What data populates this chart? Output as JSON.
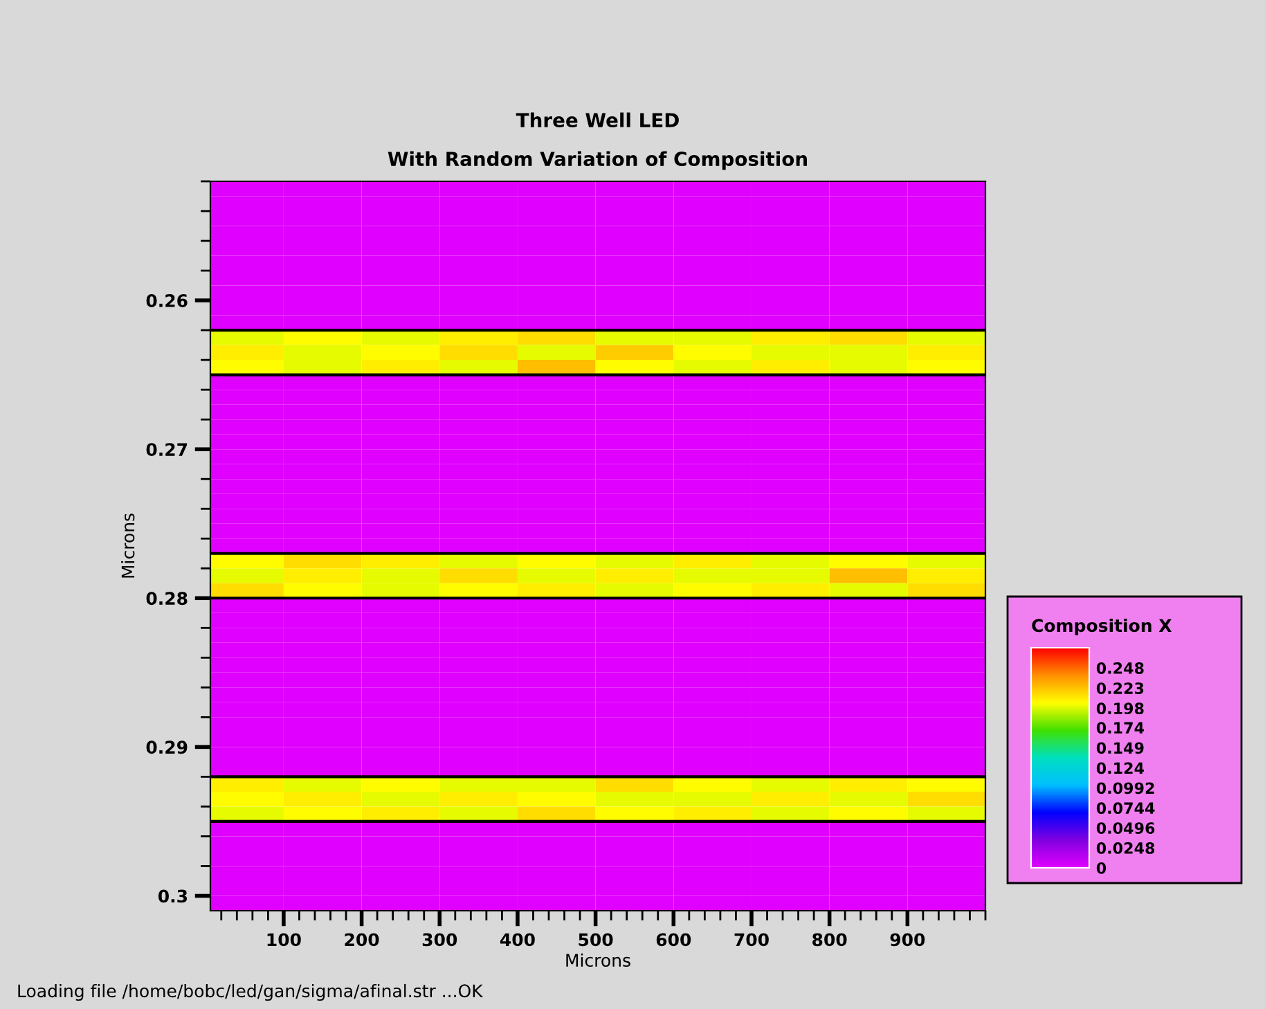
{
  "chart_data": {
    "type": "heatmap",
    "title": "Three Well LED",
    "subtitle": "With Random Variation of Composition",
    "xlabel": "Microns",
    "ylabel": "Microns",
    "clabel": "Composition X",
    "annotations": [
      "Loading file /home/bobc/led/gan/sigma/afinal.str ...OK"
    ],
    "x": [
      50,
      150,
      250,
      350,
      450,
      550,
      650,
      750,
      850,
      950
    ],
    "y": [
      0.2525,
      0.2535,
      0.2545,
      0.2555,
      0.2565,
      0.2575,
      0.2585,
      0.2595,
      0.2605,
      0.2615,
      0.2625,
      0.2635,
      0.2645,
      0.2655,
      0.2665,
      0.2675,
      0.2685,
      0.2695,
      0.2705,
      0.2715,
      0.2725,
      0.2735,
      0.2745,
      0.2755,
      0.2765,
      0.2775,
      0.2785,
      0.2795,
      0.2805,
      0.2815,
      0.2825,
      0.2835,
      0.2845,
      0.2855,
      0.2865,
      0.2875,
      0.2885,
      0.2895,
      0.2905,
      0.2915,
      0.2925,
      0.2935,
      0.2945,
      0.2955,
      0.2965,
      0.2975,
      0.2985,
      0.2995,
      0.3005
    ],
    "cells": [
      [
        0,
        0,
        0,
        0,
        0,
        0,
        0,
        0,
        0,
        0
      ],
      [
        0,
        0,
        0,
        0,
        0,
        0,
        0,
        0,
        0,
        0
      ],
      [
        0,
        0,
        0,
        0,
        0,
        0,
        0,
        0,
        0,
        0
      ],
      [
        0,
        0,
        0,
        0,
        0,
        0,
        0,
        0,
        0,
        0
      ],
      [
        0,
        0,
        0,
        0,
        0,
        0,
        0,
        0,
        0,
        0
      ],
      [
        0,
        0,
        0,
        0,
        0,
        0,
        0,
        0,
        0,
        0
      ],
      [
        0,
        0,
        0,
        0,
        0,
        0,
        0,
        0,
        0,
        0
      ],
      [
        0,
        0,
        0,
        0,
        0,
        0,
        0,
        0,
        0,
        0
      ],
      [
        0,
        0,
        0,
        0,
        0,
        0,
        0,
        0,
        0,
        0
      ],
      [
        0,
        0,
        0,
        0,
        0,
        0,
        0,
        0,
        0,
        0
      ],
      [
        0.2,
        0.205,
        0.2,
        0.21,
        0.215,
        0.2,
        0.2,
        0.21,
        0.215,
        0.2
      ],
      [
        0.21,
        0.2,
        0.205,
        0.215,
        0.2,
        0.22,
        0.205,
        0.2,
        0.2,
        0.21
      ],
      [
        0.205,
        0.2,
        0.21,
        0.2,
        0.225,
        0.205,
        0.2,
        0.21,
        0.2,
        0.205
      ],
      [
        0,
        0,
        0,
        0,
        0,
        0,
        0,
        0,
        0,
        0
      ],
      [
        0,
        0,
        0,
        0,
        0,
        0,
        0,
        0,
        0,
        0
      ],
      [
        0,
        0,
        0,
        0,
        0,
        0,
        0,
        0,
        0,
        0
      ],
      [
        0,
        0,
        0,
        0,
        0,
        0,
        0,
        0,
        0,
        0
      ],
      [
        0,
        0,
        0,
        0,
        0,
        0,
        0,
        0,
        0,
        0
      ],
      [
        0,
        0,
        0,
        0,
        0,
        0,
        0,
        0,
        0,
        0
      ],
      [
        0,
        0,
        0,
        0,
        0,
        0,
        0,
        0,
        0,
        0
      ],
      [
        0,
        0,
        0,
        0,
        0,
        0,
        0,
        0,
        0,
        0
      ],
      [
        0,
        0,
        0,
        0,
        0,
        0,
        0,
        0,
        0,
        0
      ],
      [
        0,
        0,
        0,
        0,
        0,
        0,
        0,
        0,
        0,
        0
      ],
      [
        0,
        0,
        0,
        0,
        0,
        0,
        0,
        0,
        0,
        0
      ],
      [
        0,
        0,
        0,
        0,
        0,
        0,
        0,
        0,
        0,
        0
      ],
      [
        0.205,
        0.215,
        0.21,
        0.2,
        0.205,
        0.2,
        0.21,
        0.2,
        0.205,
        0.2
      ],
      [
        0.2,
        0.21,
        0.2,
        0.215,
        0.2,
        0.21,
        0.2,
        0.2,
        0.225,
        0.21
      ],
      [
        0.215,
        0.205,
        0.2,
        0.205,
        0.21,
        0.2,
        0.205,
        0.21,
        0.2,
        0.215
      ],
      [
        0,
        0,
        0,
        0,
        0,
        0,
        0,
        0,
        0,
        0
      ],
      [
        0,
        0,
        0,
        0,
        0,
        0,
        0,
        0,
        0,
        0
      ],
      [
        0,
        0,
        0,
        0,
        0,
        0,
        0,
        0,
        0,
        0
      ],
      [
        0,
        0,
        0,
        0,
        0,
        0,
        0,
        0,
        0,
        0
      ],
      [
        0,
        0,
        0,
        0,
        0,
        0,
        0,
        0,
        0,
        0
      ],
      [
        0,
        0,
        0,
        0,
        0,
        0,
        0,
        0,
        0,
        0
      ],
      [
        0,
        0,
        0,
        0,
        0,
        0,
        0,
        0,
        0,
        0
      ],
      [
        0,
        0,
        0,
        0,
        0,
        0,
        0,
        0,
        0,
        0
      ],
      [
        0,
        0,
        0,
        0,
        0,
        0,
        0,
        0,
        0,
        0
      ],
      [
        0,
        0,
        0,
        0,
        0,
        0,
        0,
        0,
        0,
        0
      ],
      [
        0,
        0,
        0,
        0,
        0,
        0,
        0,
        0,
        0,
        0
      ],
      [
        0,
        0,
        0,
        0,
        0,
        0,
        0,
        0,
        0,
        0
      ],
      [
        0.21,
        0.2,
        0.205,
        0.2,
        0.2,
        0.215,
        0.205,
        0.2,
        0.21,
        0.205
      ],
      [
        0.205,
        0.21,
        0.2,
        0.21,
        0.205,
        0.2,
        0.2,
        0.21,
        0.2,
        0.215
      ],
      [
        0.2,
        0.205,
        0.21,
        0.2,
        0.215,
        0.205,
        0.21,
        0.2,
        0.205,
        0.2
      ],
      [
        0,
        0,
        0,
        0,
        0,
        0,
        0,
        0,
        0,
        0
      ],
      [
        0,
        0,
        0,
        0,
        0,
        0,
        0,
        0,
        0,
        0
      ],
      [
        0,
        0,
        0,
        0,
        0,
        0,
        0,
        0,
        0,
        0
      ],
      [
        0,
        0,
        0,
        0,
        0,
        0,
        0,
        0,
        0,
        0
      ],
      [
        0,
        0,
        0,
        0,
        0,
        0,
        0,
        0,
        0,
        0
      ],
      [
        0,
        0,
        0,
        0,
        0,
        0,
        0,
        0,
        0,
        0
      ]
    ],
    "colors": [
      "#e000ff",
      "#8000e0",
      "#0000ff",
      "#00c0ff",
      "#00e0c0",
      "#40e000",
      "#ffff00",
      "#ff9000",
      "#ff0000"
    ],
    "clim": [
      0,
      0.273
    ],
    "cticks": [
      0,
      0.0248,
      0.0496,
      0.0744,
      0.0992,
      0.124,
      0.149,
      0.174,
      0.198,
      0.223,
      0.248
    ],
    "xlim": [
      6,
      1000
    ],
    "xticks": [
      100,
      200,
      300,
      400,
      500,
      600,
      700,
      800,
      900
    ],
    "ylim": [
      0.301,
      0.252
    ],
    "yticks": [
      0.26,
      0.27,
      0.28,
      0.29,
      0.3
    ],
    "ref_lines": [
      {
        "axis": "y",
        "value": 0.262,
        "color": "#000000"
      },
      {
        "axis": "y",
        "value": 0.265,
        "color": "#000000"
      },
      {
        "axis": "y",
        "value": 0.277,
        "color": "#000000"
      },
      {
        "axis": "y",
        "value": 0.28,
        "color": "#000000"
      },
      {
        "axis": "y",
        "value": 0.292,
        "color": "#000000"
      },
      {
        "axis": "y",
        "value": 0.295,
        "color": "#000000"
      }
    ],
    "grid": false
  }
}
